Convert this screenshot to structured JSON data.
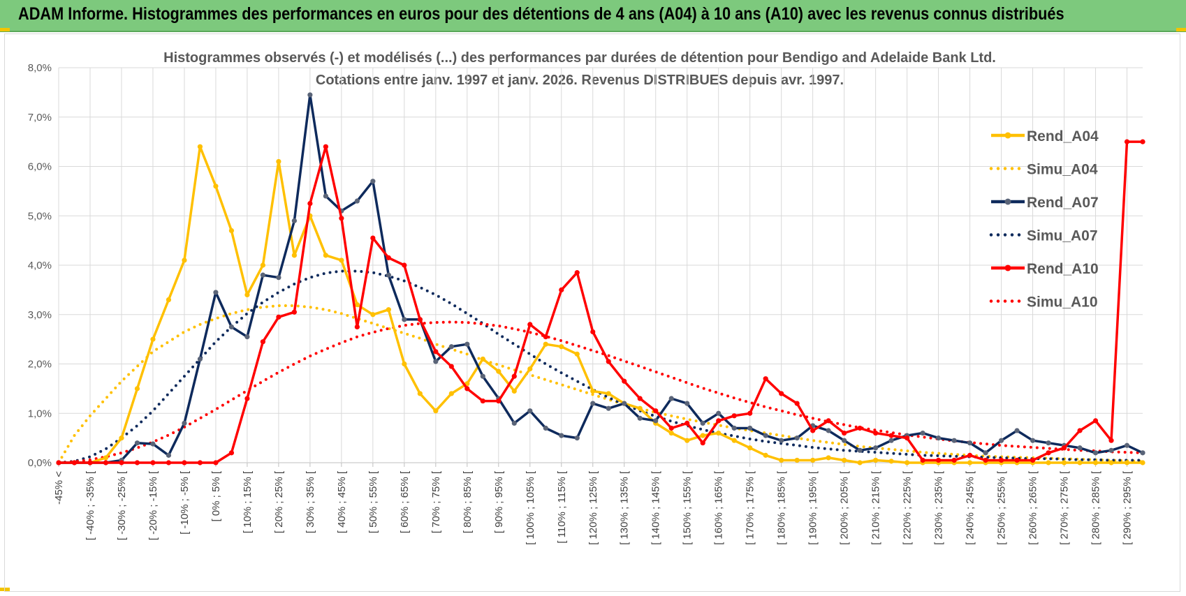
{
  "banner": {
    "title": "ADAM Informe. Histogrammes des performances en euros pour des détentions de 4 ans (A04) à 10 ans (A10) avec les revenus connus distribués"
  },
  "chart_data": {
    "type": "line",
    "title": "Histogrammes observés (-) et modélisés (...) des performances par durées de détention pour Bendigo and Adelaide Bank Ltd.",
    "subtitle": "Cotations entre janv. 1997 et janv. 2026. Revenus DISTRIBUES depuis avr. 1997.",
    "y_ticks": [
      "0,0%",
      "1,0%",
      "2,0%",
      "3,0%",
      "4,0%",
      "5,0%",
      "6,0%",
      "7,0%",
      "8,0%"
    ],
    "ylim": [
      0,
      8
    ],
    "x_labels": [
      "-45% <",
      "[ -40% ; -35% [",
      "[ -30% ; -25% [",
      "[ -20% ; -15% [",
      "[ -10% ; -5% [",
      "[ 0% ; 5% [",
      "[ 10% ; 15% [",
      "[ 20% ; 25% [",
      "[ 30% ; 35% [",
      "[ 40% ; 45% [",
      "[ 50% ; 55% [",
      "[ 60% ; 65% [",
      "[ 70% ; 75% [",
      "[ 80% ; 85% [",
      "[ 90% ; 95% [",
      "[ 100% ; 105% [",
      "[ 110% ; 115% [",
      "[ 120% ; 125% [",
      "[ 130% ; 135% [",
      "[ 140% ; 145% [",
      "[ 150% ; 155% [",
      "[ 160% ; 165% [",
      "[ 170% ; 175% [",
      "[ 180% ; 185% [",
      "[ 190% ; 195% [",
      "[ 200% ; 205% [",
      "[ 210% ; 215% [",
      "[ 220% ; 225% [",
      "[ 230% ; 235% [",
      "[ 240% ; 245% [",
      "[ 250% ; 255% [",
      "[ 260% ; 265% [",
      "[ 270% ; 275% [",
      "[ 280% ; 285% [",
      "[ 290% ; 295% ["
    ],
    "x_bins": 70,
    "series": [
      {
        "name": "Rend_A04",
        "style": "solid",
        "color": "#ffc000",
        "values": [
          0,
          0,
          0,
          0.1,
          0.5,
          1.5,
          2.5,
          3.3,
          4.1,
          6.4,
          5.6,
          4.7,
          3.4,
          4.0,
          6.1,
          4.2,
          5.0,
          4.2,
          4.1,
          3.2,
          3.0,
          3.1,
          2.0,
          1.4,
          1.05,
          1.4,
          1.6,
          2.1,
          1.85,
          1.45,
          1.9,
          2.4,
          2.35,
          2.2,
          1.45,
          1.4,
          1.2,
          1.1,
          0.8,
          0.6,
          0.45,
          0.55,
          0.6,
          0.45,
          0.3,
          0.15,
          0.05,
          0.05,
          0.05,
          0.1,
          0.05,
          0,
          0.05,
          0.03,
          0,
          0,
          0,
          0,
          0,
          0,
          0,
          0,
          0,
          0,
          0,
          0,
          0,
          0,
          0,
          0
        ]
      },
      {
        "name": "Simu_A04",
        "style": "dotted",
        "color": "#ffc000",
        "values": [
          0,
          0.55,
          0.95,
          1.3,
          1.65,
          1.95,
          2.25,
          2.45,
          2.65,
          2.8,
          2.92,
          3.02,
          3.1,
          3.15,
          3.18,
          3.18,
          3.15,
          3.1,
          3.02,
          2.92,
          2.82,
          2.72,
          2.62,
          2.52,
          2.4,
          2.3,
          2.2,
          2.08,
          1.98,
          1.88,
          1.78,
          1.68,
          1.58,
          1.48,
          1.38,
          1.28,
          1.18,
          1.1,
          1.02,
          0.95,
          0.88,
          0.82,
          0.76,
          0.7,
          0.65,
          0.6,
          0.55,
          0.5,
          0.45,
          0.41,
          0.37,
          0.33,
          0.3,
          0.27,
          0.24,
          0.21,
          0.19,
          0.17,
          0.15,
          0.13,
          0.12,
          0.11,
          0.1,
          0.09,
          0.08,
          0.07,
          0.06,
          0.05,
          0.04,
          0.03
        ]
      },
      {
        "name": "Rend_A07",
        "style": "solid",
        "color": "#0e2a5c",
        "values": [
          0,
          0,
          0,
          0,
          0.05,
          0.4,
          0.38,
          0.15,
          0.8,
          2.1,
          3.45,
          2.75,
          2.55,
          3.8,
          3.75,
          4.9,
          7.45,
          5.4,
          5.1,
          5.3,
          5.7,
          3.8,
          2.9,
          2.9,
          2.05,
          2.35,
          2.4,
          1.75,
          1.3,
          0.8,
          1.05,
          0.7,
          0.55,
          0.5,
          1.2,
          1.1,
          1.2,
          0.9,
          0.85,
          1.3,
          1.2,
          0.8,
          1.0,
          0.7,
          0.7,
          0.55,
          0.45,
          0.5,
          0.75,
          0.65,
          0.45,
          0.25,
          0.3,
          0.45,
          0.55,
          0.6,
          0.5,
          0.45,
          0.4,
          0.2,
          0.45,
          0.65,
          0.45,
          0.4,
          0.35,
          0.3,
          0.2,
          0.25,
          0.35,
          0.2
        ]
      },
      {
        "name": "Simu_A07",
        "style": "dotted",
        "color": "#0e2a5c",
        "values": [
          0,
          0.03,
          0.12,
          0.28,
          0.5,
          0.75,
          1.05,
          1.4,
          1.75,
          2.1,
          2.45,
          2.75,
          3.02,
          3.25,
          3.45,
          3.62,
          3.75,
          3.84,
          3.88,
          3.88,
          3.85,
          3.78,
          3.68,
          3.55,
          3.4,
          3.22,
          3.02,
          2.82,
          2.6,
          2.4,
          2.2,
          2.0,
          1.82,
          1.65,
          1.48,
          1.32,
          1.18,
          1.05,
          0.94,
          0.84,
          0.75,
          0.67,
          0.6,
          0.54,
          0.48,
          0.43,
          0.39,
          0.35,
          0.31,
          0.28,
          0.25,
          0.23,
          0.21,
          0.19,
          0.17,
          0.15,
          0.14,
          0.13,
          0.12,
          0.11,
          0.1,
          0.09,
          0.08,
          0.08,
          0.07,
          0.06,
          0.06,
          0.05,
          0.05,
          0.05
        ]
      },
      {
        "name": "Rend_A10",
        "style": "solid",
        "color": "#ff0000",
        "values": [
          0,
          0,
          0,
          0,
          0,
          0,
          0,
          0,
          0,
          0,
          0,
          0.2,
          1.3,
          2.45,
          2.95,
          3.05,
          5.25,
          6.4,
          4.95,
          2.75,
          4.55,
          4.15,
          4.0,
          2.9,
          2.25,
          1.95,
          1.5,
          1.25,
          1.25,
          1.75,
          2.8,
          2.55,
          3.5,
          3.85,
          2.65,
          2.05,
          1.65,
          1.3,
          1.05,
          0.7,
          0.8,
          0.4,
          0.85,
          0.95,
          1.0,
          1.7,
          1.4,
          1.2,
          0.65,
          0.85,
          0.6,
          0.7,
          0.6,
          0.55,
          0.5,
          0.05,
          0.05,
          0.05,
          0.15,
          0.05,
          0.05,
          0.05,
          0.05,
          0.2,
          0.3,
          0.65,
          0.85,
          0.45,
          6.5,
          6.5
        ]
      },
      {
        "name": "Simu_A10",
        "style": "dotted",
        "color": "#ff0000",
        "values": [
          0,
          0.02,
          0.06,
          0.12,
          0.2,
          0.3,
          0.42,
          0.56,
          0.72,
          0.9,
          1.08,
          1.27,
          1.46,
          1.65,
          1.83,
          2.0,
          2.16,
          2.3,
          2.43,
          2.55,
          2.64,
          2.72,
          2.78,
          2.82,
          2.84,
          2.85,
          2.84,
          2.81,
          2.77,
          2.71,
          2.64,
          2.56,
          2.47,
          2.37,
          2.27,
          2.17,
          2.06,
          1.95,
          1.84,
          1.73,
          1.62,
          1.51,
          1.41,
          1.31,
          1.22,
          1.13,
          1.05,
          0.97,
          0.9,
          0.83,
          0.77,
          0.71,
          0.66,
          0.61,
          0.56,
          0.52,
          0.48,
          0.44,
          0.41,
          0.38,
          0.35,
          0.33,
          0.31,
          0.29,
          0.27,
          0.25,
          0.24,
          0.22,
          0.21,
          0.2
        ]
      }
    ]
  }
}
